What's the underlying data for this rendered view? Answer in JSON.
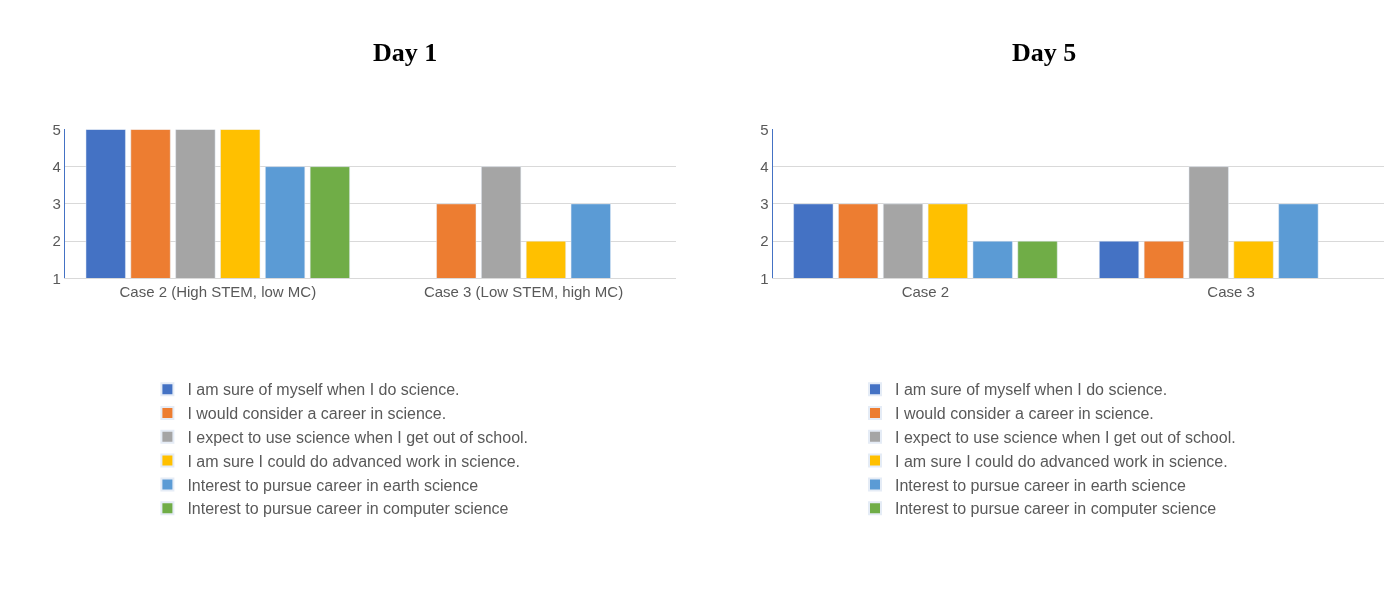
{
  "chart_data": [
    {
      "type": "bar",
      "title": "Day 1",
      "categories": [
        "Case 2 (High STEM, low MC)",
        "Case 3 (Low STEM, high MC)"
      ],
      "ylim": [
        1,
        5
      ],
      "yticks": [
        1,
        2,
        3,
        4,
        5
      ],
      "grid": "y",
      "legend": "bottom",
      "series": [
        {
          "name": "I am sure of myself when I do science.",
          "color": "#4472c4",
          "values": [
            5,
            null
          ]
        },
        {
          "name": "I would consider a career in science.",
          "color": "#ed7d31",
          "values": [
            5,
            3
          ]
        },
        {
          "name": "I expect to use science when I get out of school.",
          "color": "#a5a5a5",
          "values": [
            5,
            4
          ]
        },
        {
          "name": "I am sure I could do advanced work in science.",
          "color": "#ffc000",
          "values": [
            5,
            2
          ]
        },
        {
          "name": "Interest to pursue career in earth science",
          "color": "#5b9bd5",
          "values": [
            4,
            3
          ]
        },
        {
          "name": "Interest to pursue career in computer science",
          "color": "#70ad47",
          "values": [
            4,
            null
          ]
        }
      ]
    },
    {
      "type": "bar",
      "title": "Day 5",
      "categories": [
        "Case 2",
        "Case 3"
      ],
      "ylim": [
        1,
        5
      ],
      "yticks": [
        1,
        2,
        3,
        4,
        5
      ],
      "grid": "y",
      "legend": "bottom",
      "series": [
        {
          "name": "I am sure of myself when I do science.",
          "color": "#4472c4",
          "values": [
            3,
            2
          ]
        },
        {
          "name": "I would consider a career in science.",
          "color": "#ed7d31",
          "values": [
            3,
            2
          ]
        },
        {
          "name": "I expect to use science when I get out of school.",
          "color": "#a5a5a5",
          "values": [
            3,
            4
          ]
        },
        {
          "name": "I am sure I could do advanced work in science.",
          "color": "#ffc000",
          "values": [
            3,
            2
          ]
        },
        {
          "name": "Interest to pursue career in earth science",
          "color": "#5b9bd5",
          "values": [
            2,
            3
          ]
        },
        {
          "name": "Interest to pursue career in computer science",
          "color": "#70ad47",
          "values": [
            2,
            null
          ]
        }
      ]
    }
  ]
}
